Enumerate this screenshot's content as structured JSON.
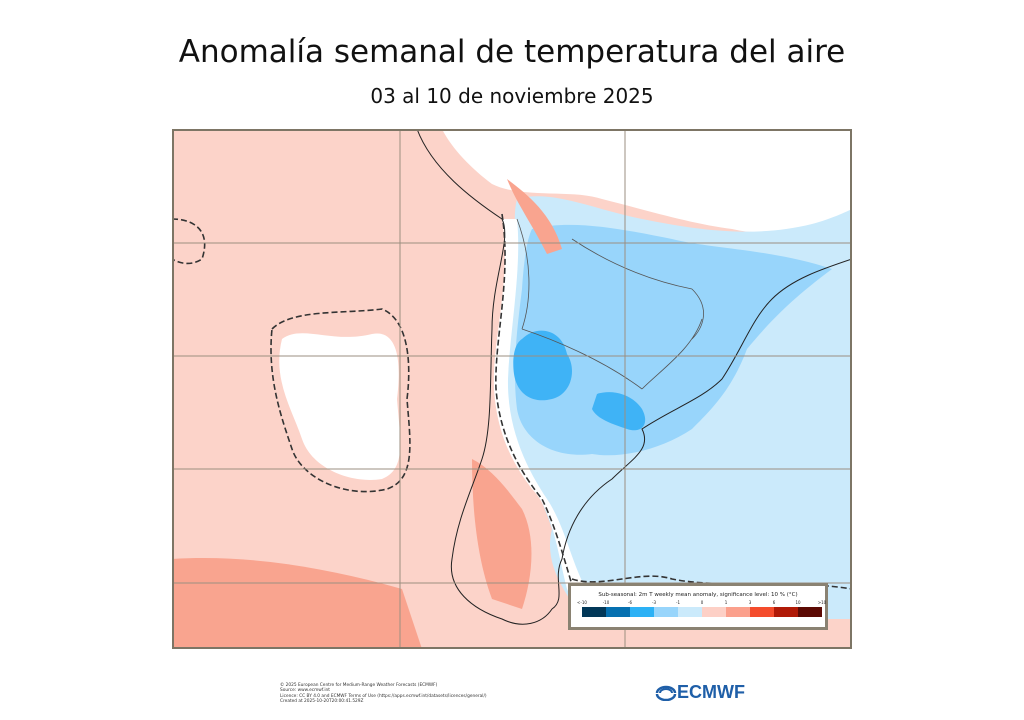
{
  "title": "Anomalía semanal de temperatura del aire",
  "subtitle": "03 al 10 de noviembre 2025",
  "legend": {
    "title": "Sub-seasonal: 2m T weekly mean anomaly, significance level: 10 % (°C)",
    "ticks": [
      "<-10",
      "-10",
      "-6",
      "-3",
      "-1",
      "0",
      "1",
      "3",
      "6",
      "10",
      ">10"
    ],
    "colors": [
      "#023858",
      "#0570b0",
      "#2cb1f5",
      "#98d5fb",
      "#cbeafb",
      "#fdd0c6",
      "#fba08c",
      "#f44c2c",
      "#b01a07",
      "#5c0a04"
    ]
  },
  "map_colors": {
    "no_signal": "#ffffff",
    "warm_1": "#fcd3c9",
    "warm_2": "#f9a48f",
    "cold_1": "#cbeafb",
    "cold_2": "#98d5fb",
    "cold_3": "#3fb3f6"
  },
  "footer": {
    "lines": [
      "© 2025 European Centre for Medium-Range Weather Forecasts (ECMWF)",
      "Source: www.ecmwf.int",
      "Licence: CC BY 4.0 and ECMWF Terms of Use (https://apps.ecmwf.int/datasets/licences/general/)",
      "Created at 2025-10-20T20:00:41.529Z"
    ]
  },
  "logo": {
    "text": "ECMWF",
    "icon": "ecmwf-logo-icon"
  }
}
